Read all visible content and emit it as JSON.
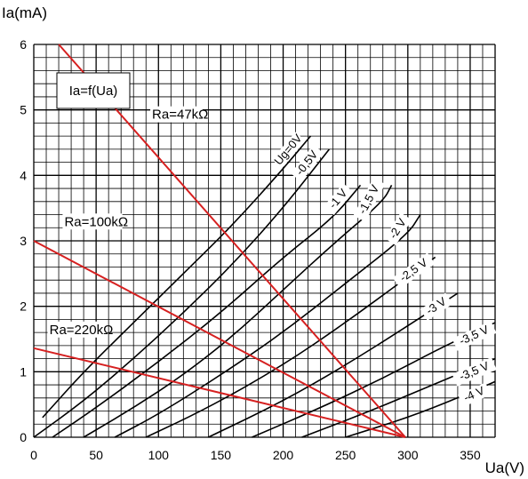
{
  "chart_data": {
    "type": "line",
    "title": "Ia=f(Ua)",
    "xlabel": "Ua(V)",
    "ylabel": "Ia(mA)",
    "xlim": [
      0,
      370
    ],
    "ylim": [
      0,
      6
    ],
    "x_ticks": [
      "0",
      "50",
      "100",
      "150",
      "200",
      "250",
      "300",
      "350"
    ],
    "y_ticks": [
      "0",
      "1",
      "2",
      "3",
      "4",
      "5",
      "6"
    ],
    "grid": true,
    "colors": {
      "curves": "#000000",
      "load_lines": "#d62020",
      "grid": "#000000"
    },
    "series": [
      {
        "name": "Ug=0V",
        "points": [
          [
            7,
            0.3
          ],
          [
            40,
            1.0
          ],
          [
            80,
            1.75
          ],
          [
            120,
            2.5
          ],
          [
            160,
            3.25
          ],
          [
            200,
            4.1
          ],
          [
            222,
            4.6
          ]
        ]
      },
      {
        "name": "-0,5V",
        "points": [
          [
            0,
            0
          ],
          [
            40,
            0.55
          ],
          [
            80,
            1.2
          ],
          [
            120,
            1.9
          ],
          [
            160,
            2.65
          ],
          [
            200,
            3.5
          ],
          [
            237,
            4.4
          ]
        ]
      },
      {
        "name": "-1 V",
        "points": [
          [
            15,
            0
          ],
          [
            50,
            0.45
          ],
          [
            100,
            1.15
          ],
          [
            150,
            1.9
          ],
          [
            200,
            2.75
          ],
          [
            240,
            3.35
          ],
          [
            262,
            3.85
          ]
        ]
      },
      {
        "name": "-1,5 V",
        "points": [
          [
            40,
            0
          ],
          [
            80,
            0.45
          ],
          [
            120,
            0.95
          ],
          [
            160,
            1.55
          ],
          [
            200,
            2.25
          ],
          [
            240,
            2.95
          ],
          [
            280,
            3.6
          ],
          [
            287,
            3.85
          ]
        ]
      },
      {
        "name": "-2 V",
        "points": [
          [
            65,
            0
          ],
          [
            100,
            0.35
          ],
          [
            150,
            0.95
          ],
          [
            200,
            1.6
          ],
          [
            250,
            2.35
          ],
          [
            300,
            3.1
          ],
          [
            310,
            3.4
          ]
        ]
      },
      {
        "name": "-2,5 V",
        "points": [
          [
            90,
            0
          ],
          [
            140,
            0.45
          ],
          [
            200,
            1.1
          ],
          [
            250,
            1.75
          ],
          [
            300,
            2.45
          ],
          [
            322,
            2.75
          ]
        ]
      },
      {
        "name": "-3 V",
        "points": [
          [
            140,
            0
          ],
          [
            200,
            0.55
          ],
          [
            250,
            1.1
          ],
          [
            300,
            1.7
          ],
          [
            340,
            2.2
          ]
        ]
      },
      {
        "name": "-3,5 V",
        "points": [
          [
            175,
            0
          ],
          [
            230,
            0.45
          ],
          [
            280,
            0.9
          ],
          [
            330,
            1.4
          ],
          [
            370,
            1.75
          ]
        ]
      },
      {
        "name": "-3,5 V ",
        "points": [
          [
            215,
            0
          ],
          [
            270,
            0.4
          ],
          [
            320,
            0.8
          ],
          [
            370,
            1.2
          ]
        ]
      },
      {
        "name": "-4 V",
        "points": [
          [
            250,
            0
          ],
          [
            300,
            0.3
          ],
          [
            340,
            0.6
          ],
          [
            370,
            0.85
          ]
        ]
      }
    ],
    "load_lines": [
      {
        "name": "Ra=47kΩ",
        "points": [
          [
            20,
            6
          ],
          [
            298,
            0
          ]
        ]
      },
      {
        "name": "Ra=100kΩ",
        "points": [
          [
            0,
            3
          ],
          [
            298,
            0
          ]
        ]
      },
      {
        "name": "Ra=220kΩ",
        "points": [
          [
            0,
            1.36
          ],
          [
            298,
            0
          ]
        ]
      }
    ]
  }
}
